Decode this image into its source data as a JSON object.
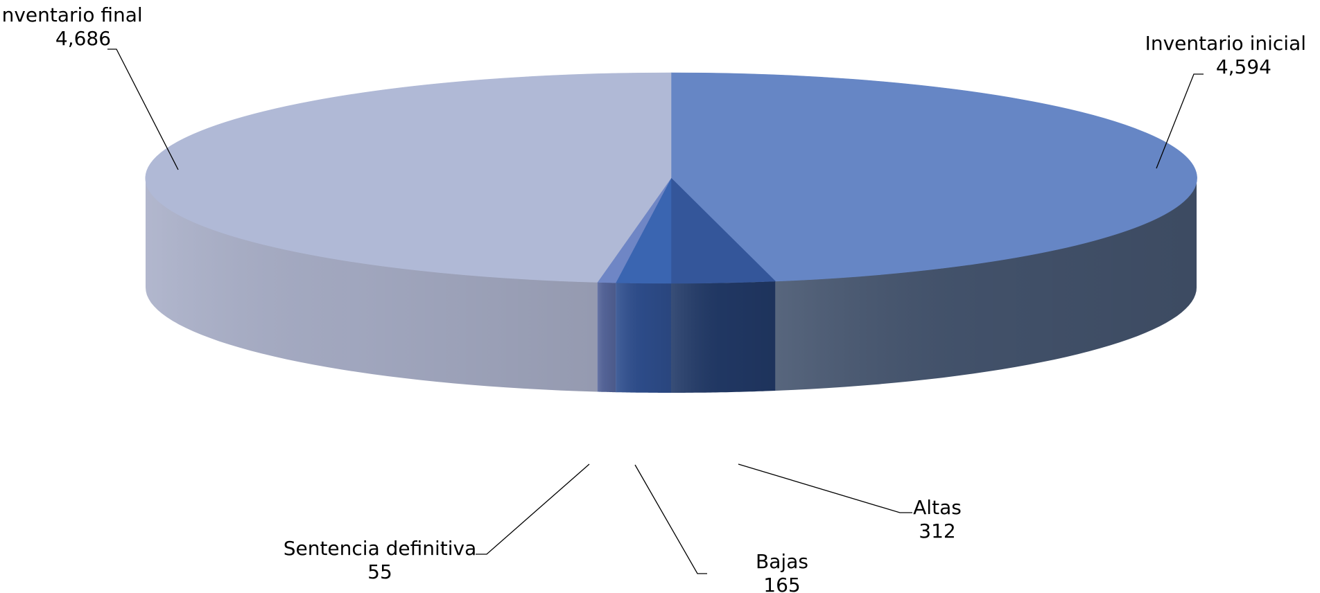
{
  "chart_data": {
    "type": "pie",
    "style": "3d",
    "categories": [
      "Inventario inicial",
      "Altas",
      "Bajas",
      "Sentencia definitiva",
      "Inventario final"
    ],
    "values": [
      4594,
      312,
      165,
      55,
      4686
    ],
    "value_labels": [
      "4,594",
      "312",
      "165",
      "55",
      "4,686"
    ],
    "colors": [
      "#6686c5",
      "#34569a",
      "#3a65b1",
      "#6f86c5",
      "#b0b9d6"
    ],
    "side_colors": [
      "#45556f",
      "#223a68",
      "#2f4f8f",
      "#56669c",
      "#a9afc8"
    ],
    "title": "",
    "legend": "none"
  }
}
